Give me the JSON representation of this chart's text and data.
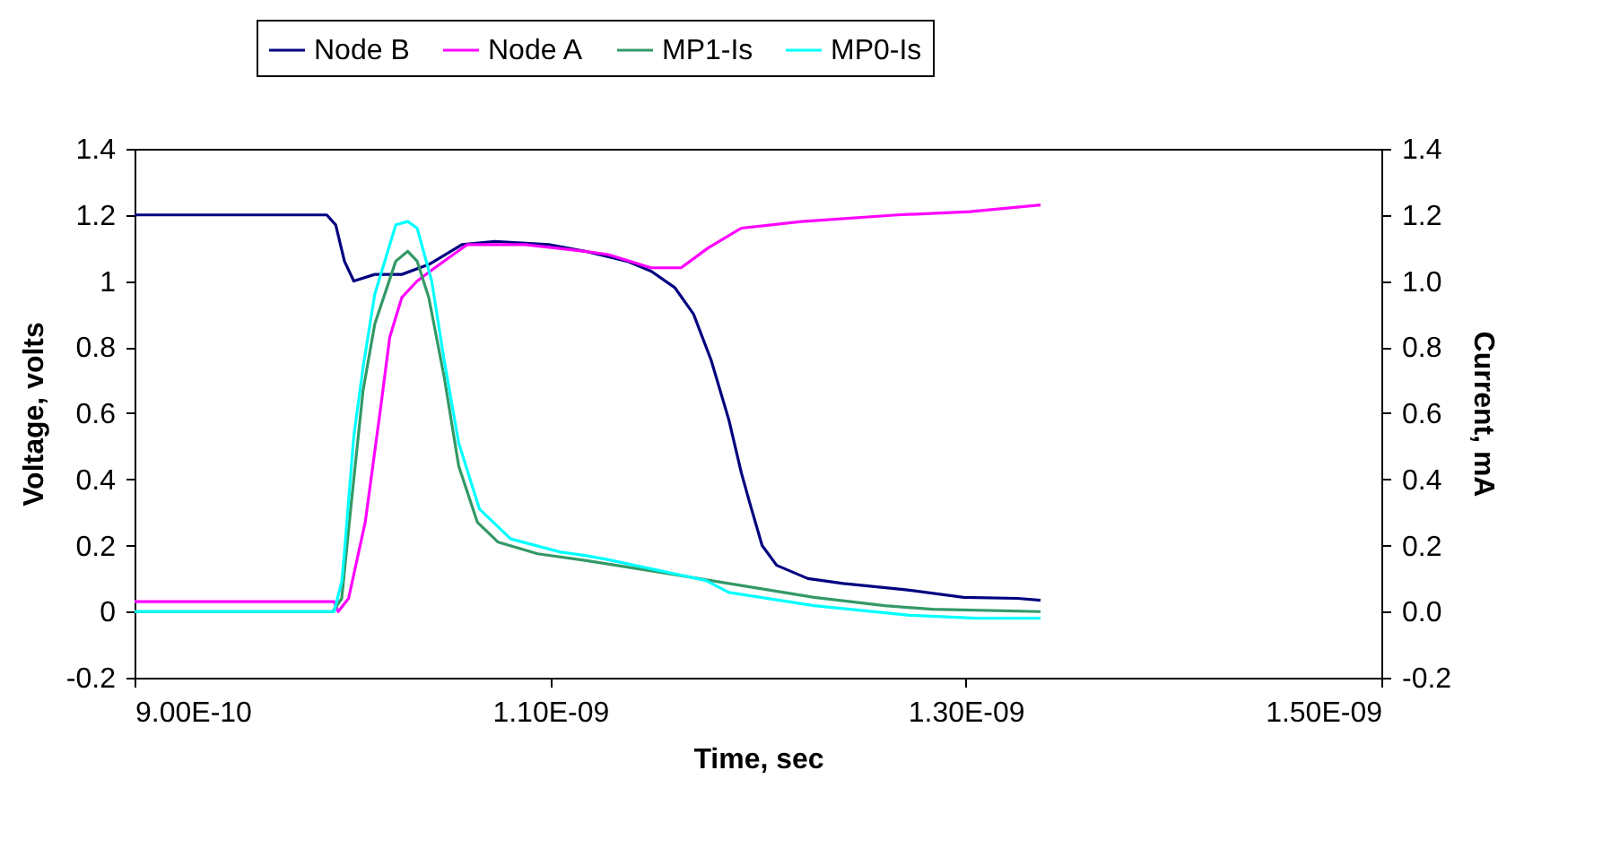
{
  "chart_data": {
    "type": "line",
    "xlabel": "Time, sec",
    "ylabel": "Voltage, volts",
    "y2label": "Current, mA",
    "xlim": [
      9e-10,
      1.5e-09
    ],
    "xticks": [
      {
        "value": 9e-10,
        "label": "9.00E-10"
      },
      {
        "value": 1.1e-09,
        "label": "1.10E-09"
      },
      {
        "value": 1.3e-09,
        "label": "1.30E-09"
      },
      {
        "value": 1.5e-09,
        "label": "1.50E-09"
      }
    ],
    "ylim": [
      -0.2,
      1.4
    ],
    "yticks": [
      -0.2,
      0,
      0.2,
      0.4,
      0.6,
      0.8,
      1,
      1.2,
      1.4
    ],
    "y2lim": [
      -0.2,
      1.4
    ],
    "y2ticks": [
      -0.2,
      {
        "value": 0,
        "label": "0.0"
      },
      0.2,
      0.4,
      0.6,
      0.8,
      {
        "value": 1,
        "label": "1.0"
      },
      1.2,
      1.4
    ],
    "grid": false,
    "legend": "top",
    "marker": "none",
    "line_style": "solid",
    "series": [
      {
        "name": "Node B",
        "color": "#000080",
        "x": [
          9e-10,
          9.925e-10,
          9.968e-10,
          1.001e-09,
          1.0055e-09,
          1.0156e-09,
          1.0286e-09,
          1.0416e-09,
          1.0575e-09,
          1.0734e-09,
          1.0994e-09,
          1.1168e-09,
          1.137e-09,
          1.1486e-09,
          1.16e-09,
          1.169e-09,
          1.1775e-09,
          1.186e-09,
          1.192e-09,
          1.196e-09,
          1.202e-09,
          1.209e-09,
          1.224e-09,
          1.241e-09,
          1.27e-09,
          1.299e-09,
          1.325e-09,
          1.336e-09
        ],
        "values": [
          1.2,
          1.2,
          1.17,
          1.06,
          1.0,
          1.02,
          1.02,
          1.05,
          1.11,
          1.12,
          1.11,
          1.09,
          1.06,
          1.03,
          0.98,
          0.9,
          0.76,
          0.58,
          0.42,
          0.33,
          0.2,
          0.14,
          0.1,
          0.085,
          0.067,
          0.043,
          0.04,
          0.034
        ]
      },
      {
        "name": "Node A",
        "color": "#ff00ff",
        "x": [
          9e-10,
          9.96e-10,
          9.98e-10,
          1.003e-09,
          1.011e-09,
          1.0185e-09,
          1.0228e-09,
          1.0286e-09,
          1.036e-09,
          1.0445e-09,
          1.06e-09,
          1.088e-09,
          1.1168e-09,
          1.128e-09,
          1.1486e-09,
          1.163e-09,
          1.176e-09,
          1.192e-09,
          1.221e-09,
          1.267e-09,
          1.302e-09,
          1.336e-09
        ],
        "values": [
          0.03,
          0.03,
          0,
          0.04,
          0.27,
          0.62,
          0.83,
          0.95,
          1.0,
          1.04,
          1.11,
          1.11,
          1.09,
          1.08,
          1.04,
          1.04,
          1.1,
          1.16,
          1.18,
          1.2,
          1.21,
          1.23
        ]
      },
      {
        "name": "MP1-Is",
        "color": "#339966",
        "axis": "y2",
        "x": [
          9e-10,
          9.954e-10,
          9.997e-10,
          1.004e-09,
          1.01e-09,
          1.0156e-09,
          1.0257e-09,
          1.0315e-09,
          1.036e-09,
          1.0416e-09,
          1.049e-09,
          1.056e-09,
          1.065e-09,
          1.075e-09,
          1.094e-09,
          1.1168e-09,
          1.157e-09,
          1.186e-09,
          1.227e-09,
          1.261e-09,
          1.284e-09,
          1.336e-09
        ],
        "values": [
          0,
          0,
          0.04,
          0.31,
          0.67,
          0.87,
          1.06,
          1.09,
          1.06,
          0.95,
          0.71,
          0.44,
          0.27,
          0.21,
          0.175,
          0.155,
          0.115,
          0.085,
          0.043,
          0.018,
          0.007,
          0
        ]
      },
      {
        "name": "MP0-Is",
        "color": "#00ffff",
        "axis": "y2",
        "x": [
          9e-10,
          9.96e-10,
          9.997e-10,
          1.001e-09,
          1.0055e-09,
          1.01e-09,
          1.0156e-09,
          1.0257e-09,
          1.0315e-09,
          1.036e-09,
          1.043e-09,
          1.049e-09,
          1.056e-09,
          1.066e-09,
          1.081e-09,
          1.105e-09,
          1.1168e-09,
          1.128e-09,
          1.175e-09,
          1.186e-09,
          1.227e-09,
          1.273e-09,
          1.305e-09,
          1.336e-09
        ],
        "values": [
          0,
          0,
          0.09,
          0.18,
          0.53,
          0.74,
          0.96,
          1.17,
          1.18,
          1.16,
          1.0,
          0.76,
          0.51,
          0.31,
          0.22,
          0.18,
          0.17,
          0.157,
          0.094,
          0.058,
          0.018,
          -0.011,
          -0.02,
          -0.02
        ]
      }
    ]
  }
}
